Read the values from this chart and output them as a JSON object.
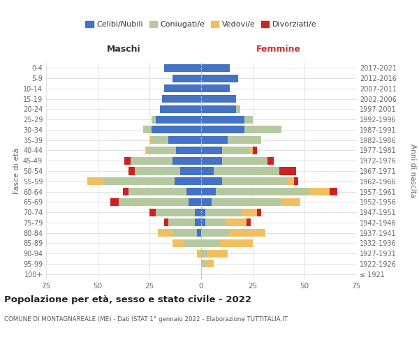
{
  "age_groups": [
    "100+",
    "95-99",
    "90-94",
    "85-89",
    "80-84",
    "75-79",
    "70-74",
    "65-69",
    "60-64",
    "55-59",
    "50-54",
    "45-49",
    "40-44",
    "35-39",
    "30-34",
    "25-29",
    "20-24",
    "15-19",
    "10-14",
    "5-9",
    "0-4"
  ],
  "birth_years": [
    "≤ 1921",
    "1922-1926",
    "1927-1931",
    "1932-1936",
    "1937-1941",
    "1942-1946",
    "1947-1951",
    "1952-1956",
    "1957-1961",
    "1962-1966",
    "1967-1971",
    "1972-1976",
    "1977-1981",
    "1982-1986",
    "1987-1991",
    "1992-1996",
    "1997-2001",
    "2002-2006",
    "2007-2011",
    "2012-2016",
    "2017-2021"
  ],
  "colors": {
    "celibe": "#4472c4",
    "coniugato": "#b5c9a0",
    "vedovo": "#f0c060",
    "divorziato": "#cc2222"
  },
  "maschi": {
    "celibe": [
      0,
      0,
      0,
      0,
      2,
      3,
      3,
      6,
      7,
      13,
      10,
      14,
      12,
      16,
      24,
      22,
      20,
      19,
      18,
      14,
      18
    ],
    "coniugato": [
      0,
      0,
      0,
      8,
      12,
      13,
      19,
      34,
      28,
      34,
      22,
      20,
      14,
      8,
      4,
      2,
      0,
      0,
      0,
      0,
      0
    ],
    "vedovo": [
      0,
      0,
      2,
      6,
      7,
      0,
      0,
      0,
      0,
      8,
      0,
      0,
      1,
      1,
      0,
      0,
      0,
      0,
      0,
      0,
      0
    ],
    "divorziato": [
      0,
      0,
      0,
      0,
      0,
      2,
      3,
      4,
      3,
      0,
      3,
      3,
      0,
      0,
      0,
      0,
      0,
      0,
      0,
      0,
      0
    ]
  },
  "femmine": {
    "nubile": [
      0,
      0,
      0,
      0,
      0,
      2,
      2,
      5,
      7,
      10,
      6,
      10,
      10,
      13,
      21,
      21,
      17,
      17,
      14,
      18,
      14
    ],
    "coniugata": [
      0,
      2,
      3,
      9,
      14,
      10,
      18,
      34,
      45,
      32,
      32,
      22,
      13,
      16,
      18,
      4,
      2,
      0,
      0,
      0,
      0
    ],
    "vedova": [
      0,
      4,
      10,
      16,
      17,
      10,
      7,
      9,
      10,
      3,
      0,
      0,
      2,
      0,
      0,
      0,
      0,
      0,
      0,
      0,
      0
    ],
    "divorziata": [
      0,
      0,
      0,
      0,
      0,
      2,
      2,
      0,
      4,
      2,
      8,
      3,
      2,
      0,
      0,
      0,
      0,
      0,
      0,
      0,
      0
    ]
  },
  "xlim": 75,
  "title": "Popolazione per età, sesso e stato civile - 2022",
  "subtitle": "COMUNE DI MONTAGNAREALE (ME) - Dati ISTAT 1° gennaio 2022 - Elaborazione TUTTITALIA.IT",
  "ylabel": "Fasce di età",
  "ylabel_right": "Anni di nascita",
  "xlabel_left": "Maschi",
  "xlabel_right": "Femmine"
}
